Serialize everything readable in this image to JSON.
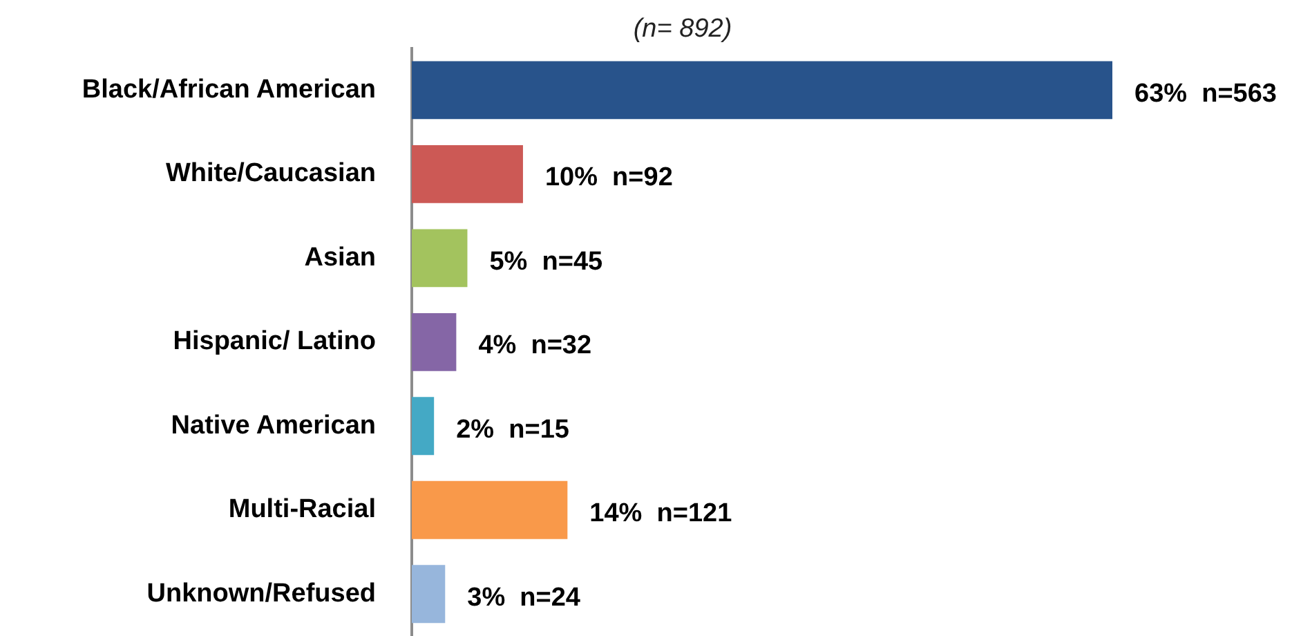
{
  "chart_data": {
    "type": "bar",
    "orientation": "horizontal",
    "title": "(n= 892)",
    "categories": [
      "Black/African American",
      "White/Caucasian",
      "Asian",
      "Hispanic/ Latino",
      "Native American",
      "Multi-Racial",
      "Unknown/Refused"
    ],
    "values": [
      63,
      10,
      5,
      4,
      2,
      14,
      3
    ],
    "colors": [
      "#28538b",
      "#cc5955",
      "#a3c35e",
      "#8566a6",
      "#44a9c5",
      "#f9994a",
      "#97b6dc"
    ],
    "value_labels": [
      "63%  n=563",
      "10%  n=92",
      "5%  n=45",
      "4%  n=32",
      "2%  n=15",
      "14%  n=121",
      "3%  n=24"
    ]
  }
}
